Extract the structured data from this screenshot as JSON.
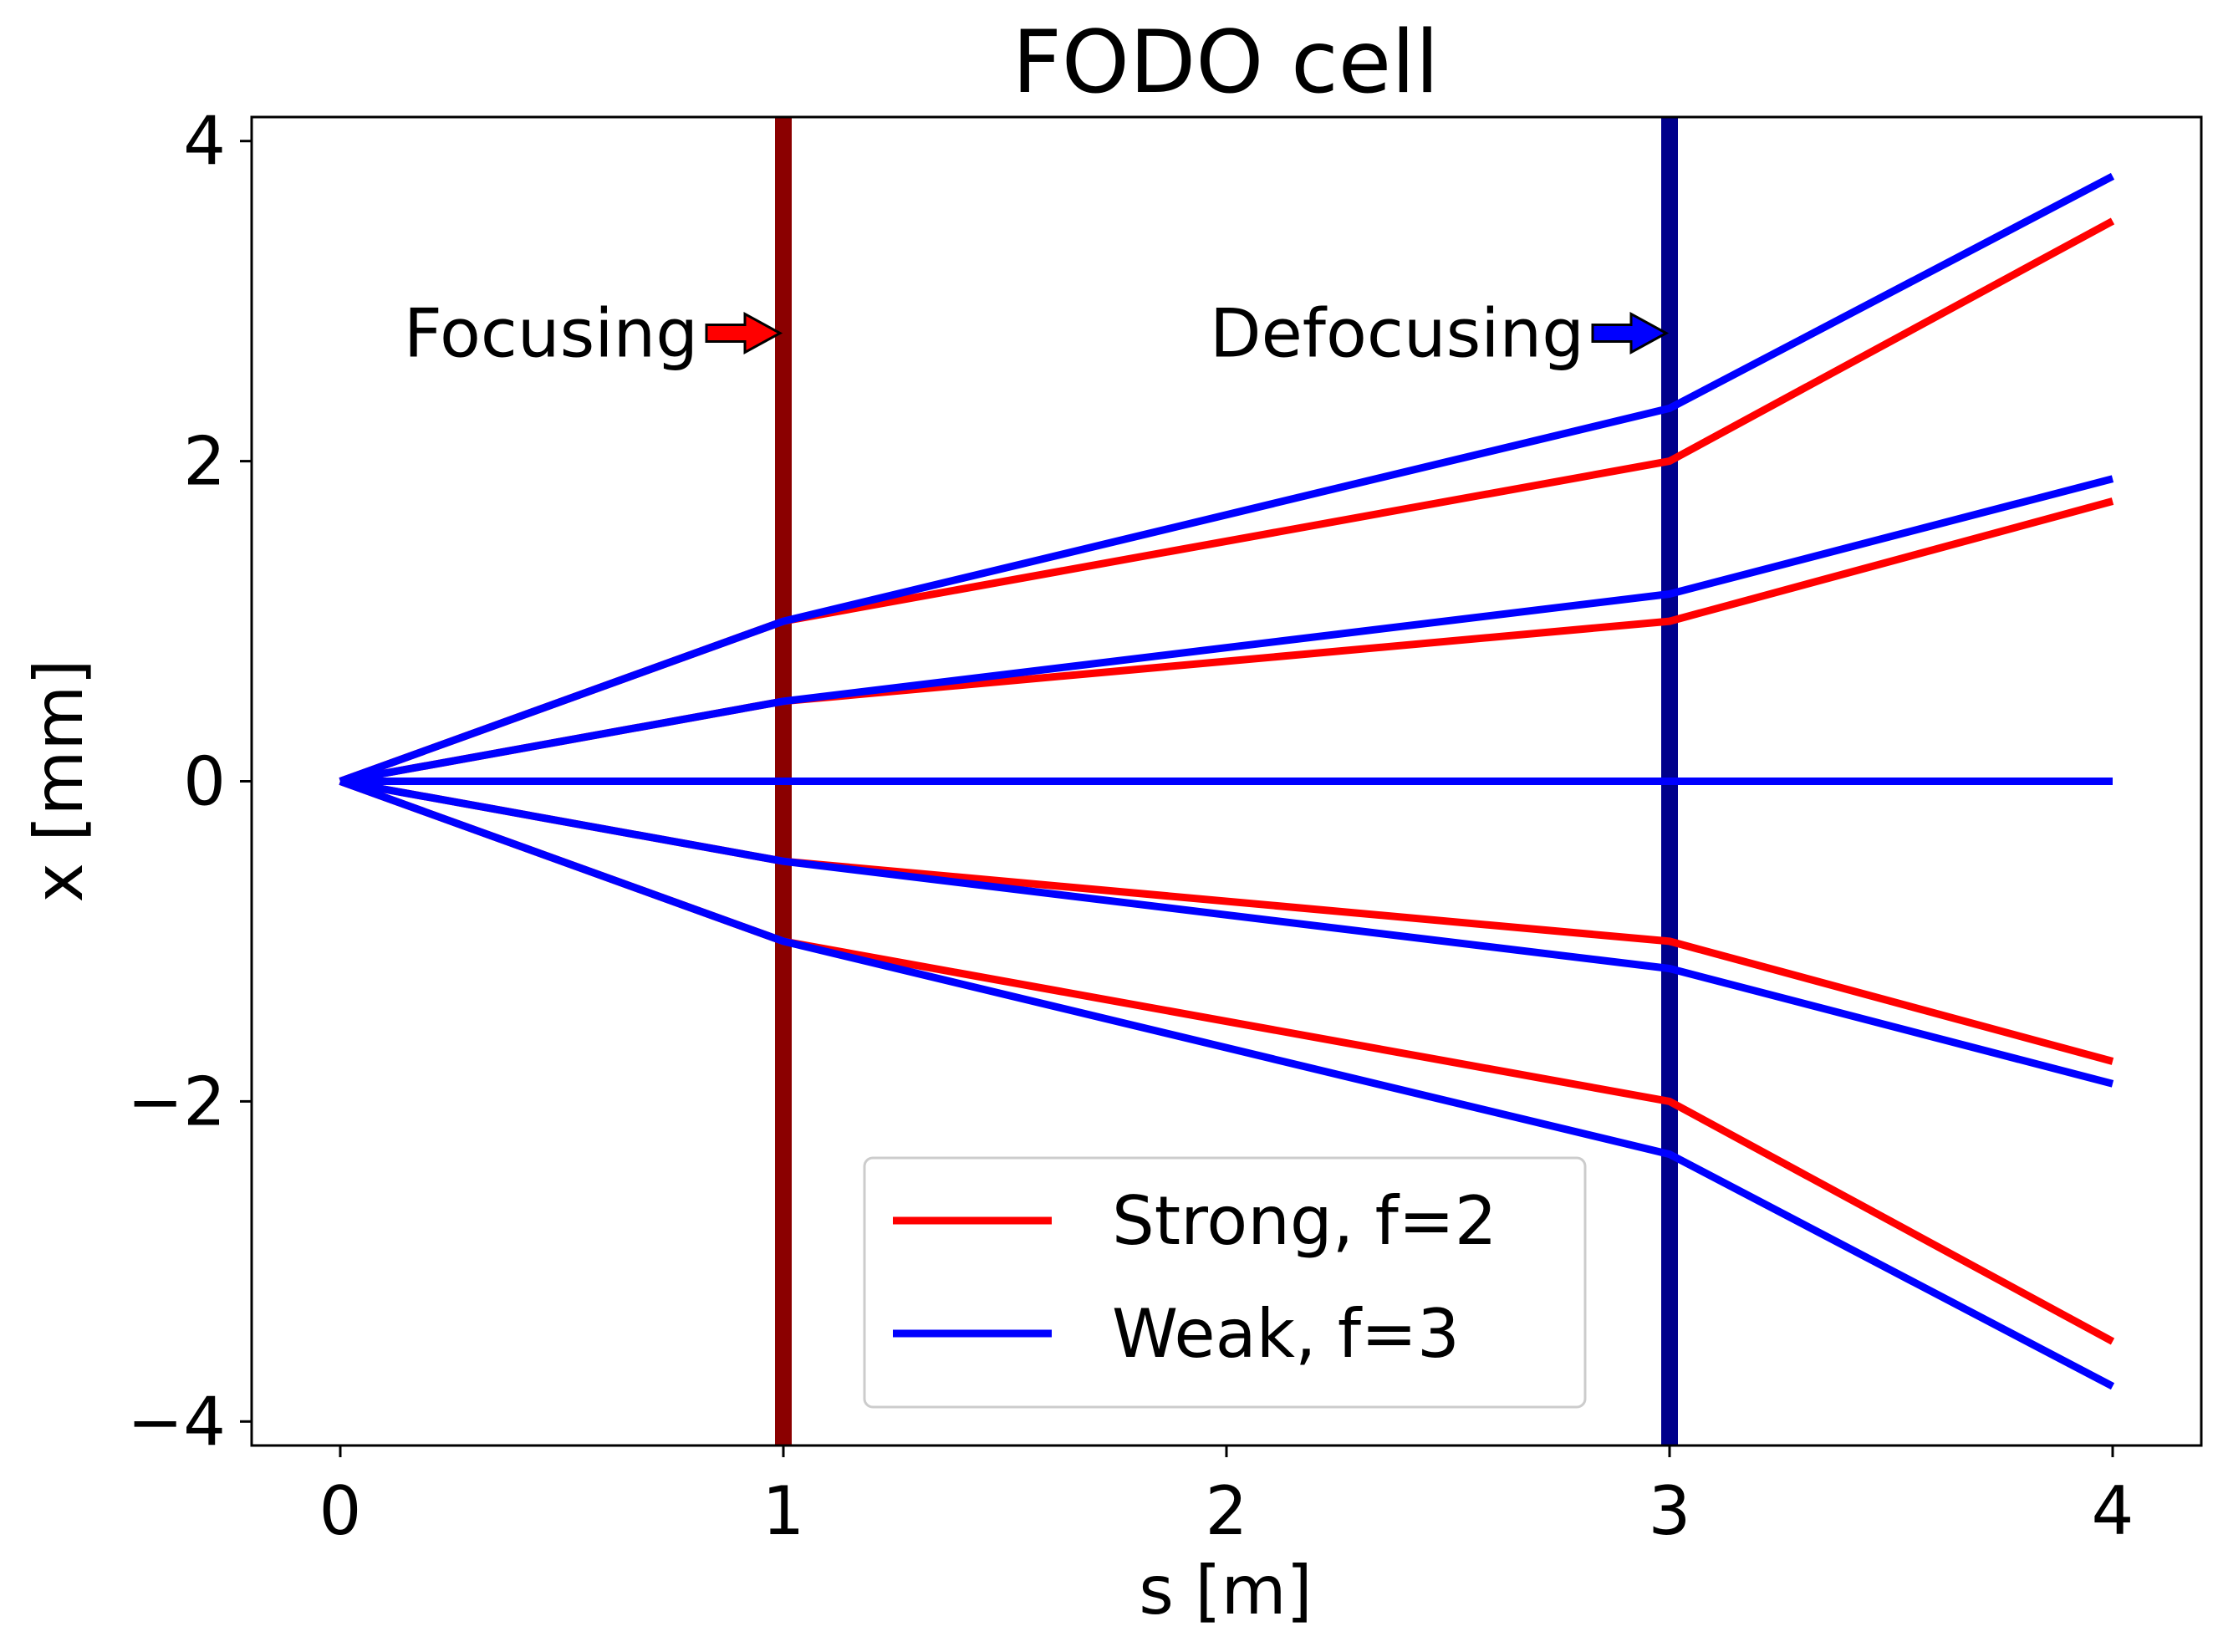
{
  "chart_data": {
    "type": "line",
    "title": "FODO cell",
    "xlabel": "s [m]",
    "ylabel": "x [mm]",
    "xlim": [
      -0.2,
      4.2
    ],
    "ylim": [
      -4.15,
      4.15
    ],
    "xticks": [
      0,
      1,
      2,
      3,
      4
    ],
    "xtick_labels": [
      "0",
      "1",
      "2",
      "3",
      "4"
    ],
    "yticks": [
      -4,
      -2,
      0,
      2,
      4
    ],
    "ytick_labels": [
      "−4",
      "−2",
      "0",
      "2",
      "4"
    ],
    "grid": false,
    "legend_position": "lower-center",
    "lenses": [
      {
        "s": 1,
        "name": "Focusing",
        "color": "#8b0000",
        "arrow_color": "#ff0000"
      },
      {
        "s": 3,
        "name": "Defocusing",
        "color": "#00008b",
        "arrow_color": "#0000ff"
      }
    ],
    "series": [
      {
        "name": "Strong, f=2",
        "color": "#ff0000",
        "rays": [
          {
            "x": [
              0,
              1,
              3,
              4
            ],
            "y": [
              0,
              1,
              2,
              3.5
            ]
          },
          {
            "x": [
              0,
              1,
              3,
              4
            ],
            "y": [
              0,
              0.5,
              1,
              1.75
            ]
          },
          {
            "x": [
              0,
              1,
              3,
              4
            ],
            "y": [
              0,
              0,
              0,
              0
            ]
          },
          {
            "x": [
              0,
              1,
              3,
              4
            ],
            "y": [
              0,
              -0.5,
              -1,
              -1.75
            ]
          },
          {
            "x": [
              0,
              1,
              3,
              4
            ],
            "y": [
              0,
              -1,
              -2,
              -3.5
            ]
          }
        ]
      },
      {
        "name": "Weak, f=3",
        "color": "#0000ff",
        "rays": [
          {
            "x": [
              0,
              1,
              3,
              4
            ],
            "y": [
              0,
              1,
              2.33,
              3.78
            ]
          },
          {
            "x": [
              0,
              1,
              3,
              4
            ],
            "y": [
              0,
              0.5,
              1.17,
              1.89
            ]
          },
          {
            "x": [
              0,
              1,
              3,
              4
            ],
            "y": [
              0,
              0,
              0,
              0
            ]
          },
          {
            "x": [
              0,
              1,
              3,
              4
            ],
            "y": [
              0,
              -0.5,
              -1.17,
              -1.89
            ]
          },
          {
            "x": [
              0,
              1,
              3,
              4
            ],
            "y": [
              0,
              -1,
              -2.33,
              -3.78
            ]
          }
        ]
      }
    ]
  }
}
